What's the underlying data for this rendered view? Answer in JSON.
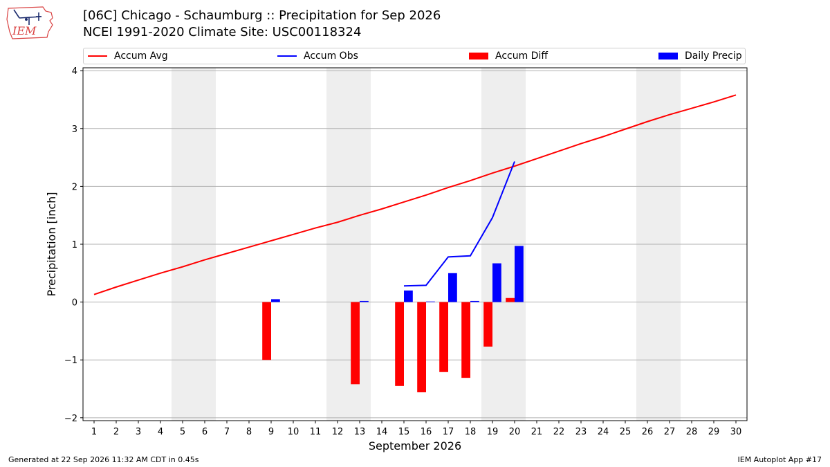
{
  "header": {
    "title_line1": "[06C] Chicago - Schaumburg :: Precipitation for Sep 2026",
    "title_line2": "NCEI 1991-2020 Climate Site: USC00118324",
    "logo_text": "IEM"
  },
  "footer": {
    "left": "Generated at 22 Sep 2026 11:32 AM CDT in 0.45s",
    "right": "IEM Autoplot App #17"
  },
  "colors": {
    "avg": "#ff0000",
    "obs": "#0000ff",
    "diff": "#ff0000",
    "daily": "#0000ff",
    "weekend_band": "#eeeeee",
    "grid": "#b0b0b0"
  },
  "chart_data": {
    "type": "bar",
    "xlabel": "September 2026",
    "ylabel": "Precipitation [inch]",
    "xlim": [
      0.5,
      30.5
    ],
    "ylim": [
      -2.05,
      4.05
    ],
    "yticks": [
      -2,
      -1,
      0,
      1,
      2,
      3,
      4
    ],
    "ytick_labels": [
      "−2",
      "−1",
      "0",
      "1",
      "2",
      "3",
      "4"
    ],
    "xticks": [
      1,
      2,
      3,
      4,
      5,
      6,
      7,
      8,
      9,
      10,
      11,
      12,
      13,
      14,
      15,
      16,
      17,
      18,
      19,
      20,
      21,
      22,
      23,
      24,
      25,
      26,
      27,
      28,
      29,
      30
    ],
    "grid": "horizontal",
    "legend_position": "top",
    "weekend_bands": [
      [
        5,
        6
      ],
      [
        12,
        13
      ],
      [
        19,
        20
      ],
      [
        26,
        27
      ]
    ],
    "series": [
      {
        "name": "Accum Avg",
        "kind": "line",
        "x": [
          1,
          2,
          3,
          4,
          5,
          6,
          7,
          8,
          9,
          10,
          11,
          12,
          13,
          14,
          15,
          16,
          17,
          18,
          19,
          20,
          21,
          22,
          23,
          24,
          25,
          26,
          27,
          28,
          29,
          30
        ],
        "values": [
          0.13,
          0.26,
          0.38,
          0.5,
          0.61,
          0.73,
          0.84,
          0.95,
          1.06,
          1.17,
          1.28,
          1.38,
          1.5,
          1.61,
          1.73,
          1.85,
          1.98,
          2.1,
          2.23,
          2.35,
          2.48,
          2.61,
          2.74,
          2.86,
          2.99,
          3.12,
          3.24,
          3.35,
          3.46,
          3.58
        ]
      },
      {
        "name": "Accum Obs",
        "kind": "line",
        "x": [
          15,
          16,
          17,
          18,
          19,
          20
        ],
        "values": [
          0.28,
          0.29,
          0.78,
          0.8,
          1.46,
          2.43
        ]
      },
      {
        "name": "Accum Diff",
        "kind": "bar",
        "x": [
          9,
          13,
          15,
          16,
          17,
          18,
          19,
          20
        ],
        "values": [
          -1.0,
          -1.42,
          -1.45,
          -1.56,
          -1.21,
          -1.31,
          -0.77,
          0.07
        ]
      },
      {
        "name": "Daily Precip",
        "kind": "bar",
        "x": [
          9,
          13,
          15,
          16,
          17,
          18,
          19,
          20
        ],
        "values": [
          0.05,
          0.02,
          0.2,
          0.01,
          0.5,
          0.02,
          0.67,
          0.97
        ]
      }
    ]
  }
}
